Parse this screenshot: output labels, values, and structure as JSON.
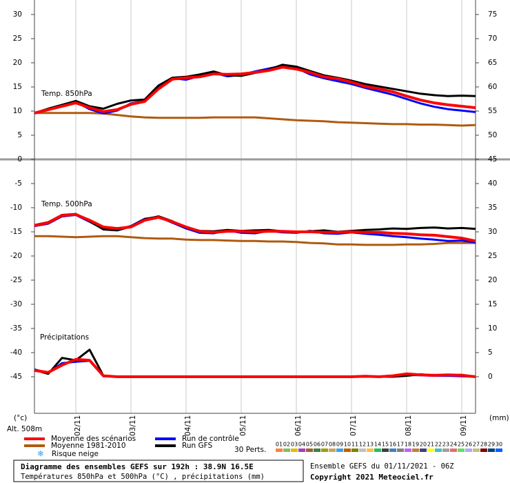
{
  "chart_data": {
    "type": "line",
    "x": [
      0,
      6,
      12,
      18,
      24,
      30,
      36,
      42,
      48,
      54,
      60,
      66,
      72,
      78,
      84,
      90,
      96,
      102,
      108,
      114,
      120,
      126,
      132,
      138,
      144,
      150,
      156,
      162,
      168,
      174,
      180,
      186,
      192
    ],
    "xlim": [
      0,
      192
    ],
    "xticks": [
      {
        "value": 18,
        "label": "02/11"
      },
      {
        "value": 42,
        "label": "03/11"
      },
      {
        "value": 66,
        "label": "04/11"
      },
      {
        "value": 90,
        "label": "05/11"
      },
      {
        "value": 114,
        "label": "06/11"
      },
      {
        "value": 138,
        "label": "07/11"
      },
      {
        "value": 162,
        "label": "08/11"
      },
      {
        "value": 186,
        "label": "09/11"
      }
    ],
    "ylim": [
      -52.5,
      33
    ],
    "yticks": [
      30,
      25,
      20,
      15,
      10,
      5,
      0,
      -5,
      -10,
      -15,
      -20,
      -25,
      -30,
      -35,
      -40,
      -45
    ],
    "y2lim": [
      -7.5,
      78
    ],
    "y2ticks": [
      75,
      70,
      65,
      60,
      55,
      50,
      45,
      40,
      35,
      30,
      25,
      20,
      15,
      10,
      5,
      0
    ],
    "yunit": "(°c)",
    "y2unit": "(mm)",
    "altitude": "Alt. 508m",
    "panels": [
      {
        "label": "Temp. 850hPa"
      },
      {
        "label": "Temp. 500hPa"
      },
      {
        "label": "Précipitations",
        "axis": "y2"
      }
    ],
    "series": [
      {
        "name": "Moyenne des scénarios",
        "color": "#ff0000",
        "values": [
          [
            9.6,
            10.3,
            11,
            11.7,
            10.7,
            9.9,
            10.3,
            11.4,
            12,
            14.6,
            16.6,
            16.9,
            17.1,
            17.7,
            17.6,
            17.7,
            18,
            18.4,
            19.1,
            18.7,
            18,
            17.1,
            16.7,
            16,
            15.1,
            14.6,
            14,
            13.1,
            12.3,
            11.7,
            11.3,
            11,
            10.7
          ],
          [
            -13.7,
            -13.1,
            -11.6,
            -11.4,
            -12.6,
            -14,
            -14.3,
            -14,
            -12.6,
            -12,
            -12.9,
            -14,
            -14.9,
            -15.1,
            -14.9,
            -14.9,
            -15,
            -14.9,
            -14.9,
            -15,
            -15,
            -15.1,
            -15.1,
            -15,
            -15.1,
            -15.1,
            -15.3,
            -15.4,
            -15.6,
            -15.7,
            -16,
            -16.3,
            -16.9
          ],
          [
            1.3,
            0.9,
            2.4,
            3.6,
            3.4,
            0.2,
            0,
            0,
            0,
            0,
            0,
            0,
            0,
            0,
            0,
            0,
            0,
            0,
            0,
            0,
            0,
            0,
            0,
            0,
            0.1,
            0,
            0.2,
            0.6,
            0.4,
            0.3,
            0.4,
            0.3,
            0
          ]
        ]
      },
      {
        "name": "Moyenne 1981-2010",
        "color": "#b05a10",
        "values": [
          [
            9.6,
            9.6,
            9.6,
            9.6,
            9.6,
            9.5,
            9.2,
            8.9,
            8.7,
            8.6,
            8.6,
            8.6,
            8.6,
            8.7,
            8.7,
            8.7,
            8.7,
            8.5,
            8.3,
            8.1,
            8.0,
            7.9,
            7.7,
            7.6,
            7.5,
            7.4,
            7.3,
            7.3,
            7.2,
            7.2,
            7.1,
            7.0,
            7.1
          ],
          [
            -15.9,
            -15.9,
            -16,
            -16.1,
            -16,
            -15.9,
            -15.9,
            -16.1,
            -16.3,
            -16.4,
            -16.4,
            -16.6,
            -16.7,
            -16.7,
            -16.8,
            -16.9,
            -16.9,
            -17,
            -17,
            -17.1,
            -17.3,
            -17.4,
            -17.6,
            -17.6,
            -17.7,
            -17.7,
            -17.7,
            -17.6,
            -17.6,
            -17.5,
            -17.3,
            -17.3,
            -17.3
          ]
        ]
      },
      {
        "name": "Run de contrôle",
        "color": "#0000ff",
        "values": [
          [
            9.5,
            10.4,
            11.2,
            11.9,
            10.4,
            9.5,
            10.1,
            11.6,
            12.1,
            15,
            16.8,
            16.5,
            17.3,
            17.9,
            17.2,
            17.5,
            18.2,
            18.8,
            19.4,
            18.9,
            17.6,
            16.8,
            16.2,
            15.6,
            14.8,
            14.1,
            13.4,
            12.5,
            11.6,
            10.9,
            10.4,
            10.1,
            9.8
          ],
          [
            -13.8,
            -13.3,
            -11.8,
            -11.5,
            -12.9,
            -14.4,
            -14.5,
            -13.8,
            -12.3,
            -11.9,
            -13.1,
            -14.3,
            -15.2,
            -15.3,
            -14.7,
            -15.2,
            -15.3,
            -14.8,
            -15.1,
            -15.2,
            -14.8,
            -15.3,
            -15.4,
            -15.1,
            -15.4,
            -15.6,
            -15.9,
            -16.1,
            -16.4,
            -16.6,
            -16.9,
            -16.8,
            -17.2
          ],
          [
            1.5,
            0.8,
            2.8,
            3.1,
            3.3,
            0.1,
            0,
            0,
            0,
            0,
            0,
            0,
            0,
            0,
            0,
            0,
            0,
            0,
            0,
            0,
            0,
            0,
            0,
            0,
            0,
            0,
            0.1,
            0.4,
            0.3,
            0.2,
            0.2,
            0.1,
            0
          ]
        ]
      },
      {
        "name": "Run GFS",
        "color": "#000000",
        "values": [
          [
            9.6,
            10.5,
            11.3,
            12.1,
            11,
            10.5,
            11.5,
            12.2,
            12.4,
            15.3,
            16.9,
            17.1,
            17.6,
            18.2,
            17.4,
            17.3,
            17.9,
            18.6,
            19.6,
            19.2,
            18.3,
            17.4,
            16.9,
            16.3,
            15.6,
            15.1,
            14.6,
            14.1,
            13.6,
            13.3,
            13.1,
            13.2,
            13.1
          ],
          [
            -13.6,
            -13,
            -11.5,
            -11.3,
            -12.8,
            -14.5,
            -14.7,
            -13.9,
            -12.4,
            -11.8,
            -12.8,
            -14.1,
            -14.8,
            -14.9,
            -14.6,
            -14.8,
            -14.7,
            -14.6,
            -14.9,
            -15.1,
            -14.9,
            -14.7,
            -15,
            -14.8,
            -14.6,
            -14.5,
            -14.3,
            -14.4,
            -14.2,
            -14.1,
            -14.3,
            -14.2,
            -14.4
          ],
          [
            1.4,
            0.6,
            3.9,
            3.4,
            5.6,
            0.2,
            0,
            0,
            0,
            0,
            0,
            0,
            0,
            0,
            0,
            0,
            0,
            0,
            0,
            0,
            0,
            0,
            0,
            0,
            0,
            0,
            0,
            0.2,
            0.5,
            0.3,
            0.3,
            0.4,
            0
          ]
        ]
      }
    ],
    "snow_risk": "Risque neige",
    "perturbations": {
      "label": "30 Perts.",
      "members": [
        {
          "name": "01",
          "color": "#ff8040"
        },
        {
          "name": "02",
          "color": "#80c060"
        },
        {
          "name": "03",
          "color": "#e0c000"
        },
        {
          "name": "04",
          "color": "#a040c0"
        },
        {
          "name": "05",
          "color": "#a06030"
        },
        {
          "name": "06",
          "color": "#408040"
        },
        {
          "name": "07",
          "color": "#a0a000"
        },
        {
          "name": "08",
          "color": "#d0a060"
        },
        {
          "name": "09",
          "color": "#40a0e0"
        },
        {
          "name": "10",
          "color": "#c06000"
        },
        {
          "name": "11",
          "color": "#808000"
        },
        {
          "name": "12",
          "color": "#c0c0c0"
        },
        {
          "name": "13",
          "color": "#ffc040"
        },
        {
          "name": "14",
          "color": "#20c060"
        },
        {
          "name": "15",
          "color": "#404040"
        },
        {
          "name": "16",
          "color": "#4080c0"
        },
        {
          "name": "17",
          "color": "#808080"
        },
        {
          "name": "18",
          "color": "#c060ff"
        },
        {
          "name": "19",
          "color": "#c08040"
        },
        {
          "name": "20",
          "color": "#404080"
        },
        {
          "name": "21",
          "color": "#ffff00"
        },
        {
          "name": "22",
          "color": "#40c0c0"
        },
        {
          "name": "23",
          "color": "#a0a0a0"
        },
        {
          "name": "24",
          "color": "#e07070"
        },
        {
          "name": "25",
          "color": "#60e060"
        },
        {
          "name": "26",
          "color": "#c0a0ff"
        },
        {
          "name": "27",
          "color": "#c0c080"
        },
        {
          "name": "28",
          "color": "#800000"
        },
        {
          "name": "29",
          "color": "#004080"
        },
        {
          "name": "30",
          "color": "#0060ff"
        }
      ]
    },
    "footer": {
      "title": "Diagramme des ensembles GEFS sur 192h : 38.9N 16.5E",
      "subtitle": "Températures 850hPa et 500hPa (°C) , précipitations (mm)",
      "run": "Ensemble GEFS du 01/11/2021 - 06Z",
      "copyright": "Copyright 2021 Meteociel.fr"
    }
  }
}
